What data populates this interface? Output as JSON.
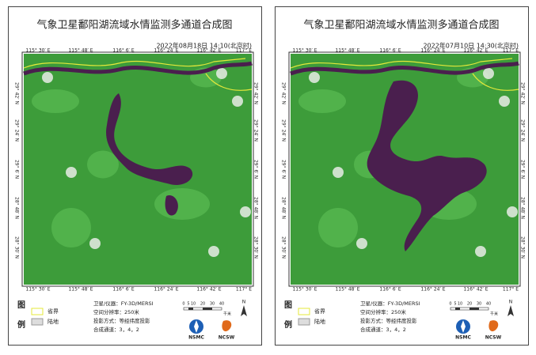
{
  "panels": [
    {
      "title": "气象卫星鄱阳湖流域水情监测多通道合成图",
      "timestamp": "2022年08月18日 14:10(北京时)",
      "lon_labels": [
        "115° 30′ E",
        "115° 48′ E",
        "116° 6′ E",
        "116° 24′ E",
        "116° 42′ E",
        "117° E"
      ],
      "lat_labels": [
        "29° 42′ N",
        "29° 24′ N",
        "29° 6′ N",
        "28° 48′ N",
        "28° 30′ N"
      ],
      "legend_heading": [
        "图",
        "例"
      ],
      "legend": [
        "省界",
        "陆地"
      ],
      "info": [
        "卫星/仪器：FY-3D/MERSI",
        "空间分辨率：250米",
        "投影方式：等经纬度投影",
        "合成通道：3，4，2"
      ],
      "scale_labels": [
        "0",
        "5",
        "10",
        "20",
        "30",
        "40"
      ],
      "scale_unit": "千米",
      "north": "N",
      "logos": [
        "NSMC",
        "NCSW"
      ]
    },
    {
      "title": "气象卫星鄱阳湖流域水情监测多通道合成图",
      "timestamp": "2022年07月10日 14:30(北京时)",
      "lon_labels": [
        "115° 30′ E",
        "115° 48′ E",
        "116° 6′ E",
        "116° 24′ E",
        "116° 42′ E",
        "117° E"
      ],
      "lat_labels": [
        "29° 42′ N",
        "29° 24′ N",
        "29° 6′ N",
        "28° 48′ N",
        "28° 30′ N"
      ],
      "legend_heading": [
        "图",
        "例"
      ],
      "legend": [
        "省界",
        "陆地"
      ],
      "info": [
        "卫星/仪器：FY-3D/MERSI",
        "空间分辨率：250米",
        "投影方式：等经纬度投影",
        "合成通道：3，4，2"
      ],
      "scale_labels": [
        "0",
        "5",
        "10",
        "20",
        "30",
        "40"
      ],
      "scale_unit": "千米",
      "north": "N",
      "logos": [
        "NSMC",
        "NCSW"
      ]
    }
  ]
}
